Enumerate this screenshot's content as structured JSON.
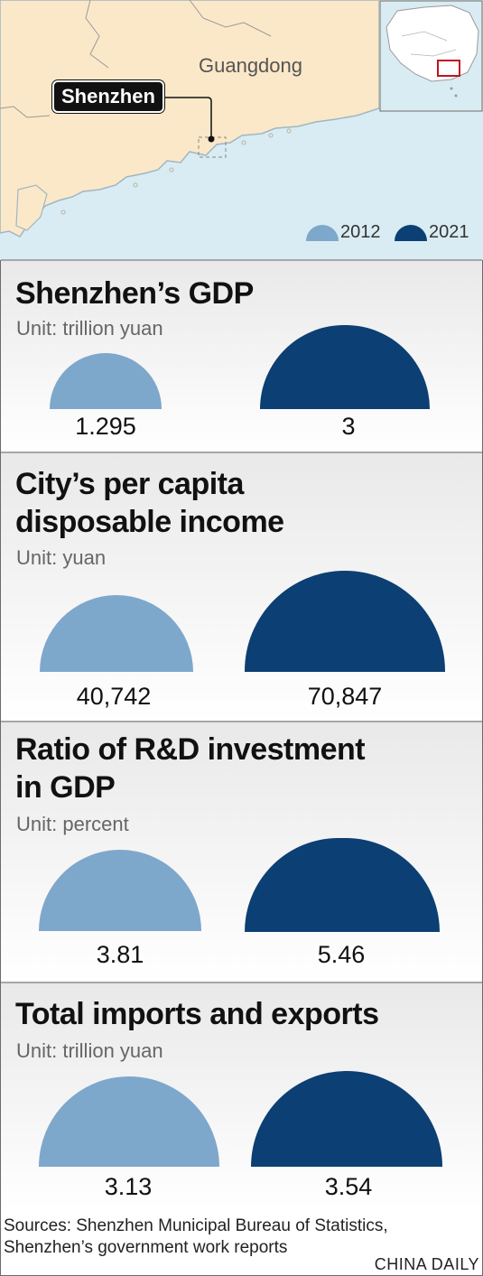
{
  "map": {
    "region_label": "Guangdong",
    "city_label": "Shenzhen"
  },
  "legend": [
    {
      "year": "2012",
      "color": "#7ea7cc"
    },
    {
      "year": "2021",
      "color": "#0c3f73"
    }
  ],
  "colors": {
    "light": "#7ea7cc",
    "dark": "#0c3f73",
    "sea": "#d9ecf3",
    "land": "#fbe8c8"
  },
  "chart_data": [
    {
      "type": "semicircle",
      "title": "Shenzhen’s GDP",
      "unit": "Unit: trillion yuan",
      "series": [
        {
          "name": "2012",
          "value": 1.295,
          "label": "1.295"
        },
        {
          "name": "2021",
          "value": 3,
          "label": "3"
        }
      ]
    },
    {
      "type": "semicircle",
      "title": "City’s per capita disposable income",
      "title_lines": [
        "City’s per capita",
        "disposable income"
      ],
      "unit": "Unit: yuan",
      "series": [
        {
          "name": "2012",
          "value": 40742,
          "label": "40,742"
        },
        {
          "name": "2021",
          "value": 70847,
          "label": "70,847"
        }
      ]
    },
    {
      "type": "semicircle",
      "title": "Ratio of R&D investment in GDP",
      "title_lines": [
        "Ratio of R&D investment",
        "in GDP"
      ],
      "unit": "Unit: percent",
      "series": [
        {
          "name": "2012",
          "value": 3.81,
          "label": "3.81"
        },
        {
          "name": "2021",
          "value": 5.46,
          "label": "5.46"
        }
      ]
    },
    {
      "type": "semicircle",
      "title": "Total imports and exports",
      "unit": "Unit: trillion yuan",
      "series": [
        {
          "name": "2012",
          "value": 3.13,
          "label": "3.13"
        },
        {
          "name": "2021",
          "value": 3.54,
          "label": "3.54"
        }
      ]
    }
  ],
  "footer": {
    "sources_line1": "Sources: Shenzhen Municipal Bureau of Statistics,",
    "sources_line2": "Shenzhen’s government work reports",
    "credit": "CHINA DAILY"
  }
}
